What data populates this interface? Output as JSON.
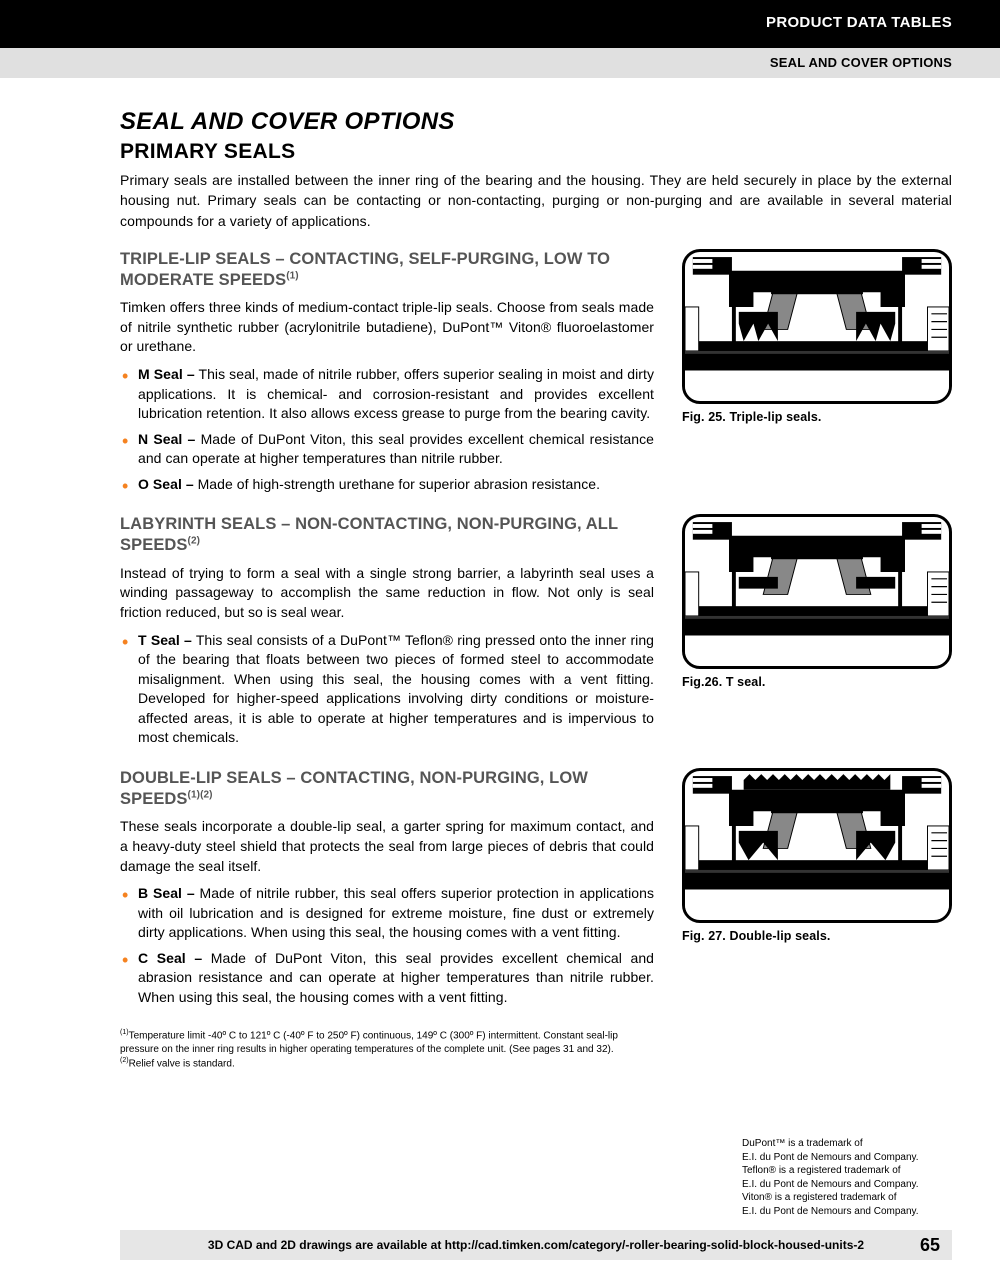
{
  "header": {
    "band1": "PRODUCT DATA TABLES",
    "band2": "SEAL AND COVER OPTIONS"
  },
  "title": "SEAL AND COVER OPTIONS",
  "subtitle": "PRIMARY SEALS",
  "intro": "Primary seals are installed between the inner ring of the bearing and the housing. They are held securely in place by the external housing nut. Primary seals can be contacting or non-contacting, purging or non-purging and are available in several material compounds for a variety of applications.",
  "sections": [
    {
      "heading": "TRIPLE-LIP SEALS – CONTACTING, SELF-PURGING, LOW TO MODERATE SPEEDS",
      "sup": "(1)",
      "para": "Timken offers three kinds of medium-contact triple-lip seals. Choose from seals made of nitrile synthetic rubber (acrylonitrile butadiene), DuPont™ Viton® fluoroelastomer or urethane.",
      "items": [
        {
          "label": "M Seal –",
          "text": " This seal, made of nitrile rubber, offers superior sealing in moist and dirty applications. It is chemical- and corrosion-resistant and provides excellent lubrication retention. It also allows excess grease to purge from the bearing cavity."
        },
        {
          "label": "N Seal –",
          "text": " Made of DuPont Viton, this seal provides excellent chemical resistance and can operate at higher temperatures than nitrile rubber."
        },
        {
          "label": "O Seal –",
          "text": " Made of high-strength urethane for superior abrasion resistance."
        }
      ],
      "fig_caption": "Fig. 25. Triple-lip seals."
    },
    {
      "heading": "LABYRINTH SEALS – NON-CONTACTING, NON-PURGING, ALL SPEEDS",
      "sup": "(2)",
      "para": "Instead of trying to form a seal with a single strong barrier, a labyrinth seal uses a winding passageway to accomplish the same reduction in flow. Not only is seal friction reduced, but so is seal wear.",
      "items": [
        {
          "label": "T Seal –",
          "text": " This seal consists of a DuPont™ Teflon® ring pressed onto the inner ring of the bearing that floats between two pieces of formed steel to accommodate misalignment. When using this seal, the housing comes with a vent fitting. Developed for higher-speed applications involving dirty conditions or moisture-affected areas, it is able to operate at higher temperatures and is impervious to most chemicals."
        }
      ],
      "fig_caption": "Fig.26. T seal."
    },
    {
      "heading": "DOUBLE-LIP SEALS – CONTACTING, NON-PURGING, LOW SPEEDS",
      "sup": "(1)(2)",
      "para": "These seals incorporate a double-lip seal, a garter spring for maximum contact, and a heavy-duty steel shield that protects the seal from large pieces of debris that could damage the seal itself.",
      "items": [
        {
          "label": "B Seal –",
          "text": " Made of nitrile rubber, this seal offers superior protection in applications with oil lubrication and is designed for extreme moisture, fine dust or extremely dirty applications. When using this seal, the housing comes with a vent fitting."
        },
        {
          "label": "C Seal –",
          "text": " Made of DuPont Viton, this seal provides excellent chemical and abrasion resistance and can operate at higher temperatures than nitrile rubber. When using this seal, the housing comes with a vent fitting."
        }
      ],
      "fig_caption": "Fig. 27. Double-lip seals."
    }
  ],
  "footnotes": [
    "Temperature limit -40º C to 121º C (-40º F to 250º F) continuous, 149º C (300º F) intermittent. Constant seal-lip pressure on the inner ring results in higher operating temperatures of the complete unit. (See pages 31 and 32).",
    "Relief valve is standard."
  ],
  "footnote_sups": [
    "(1)",
    "(2)"
  ],
  "trademarks": "DuPont™ is a trademark of\nE.I. du Pont de Nemours and Company.\nTeflon® is a registered trademark of\nE.I. du Pont de Nemours and Company.\nViton® is a registered trademark of\nE.I. du Pont de Nemours and Company.",
  "footer": "3D CAD and 2D drawings are available at http://cad.timken.com/category/-roller-bearing-solid-block-housed-units-2",
  "pagenum": "65",
  "colors": {
    "bullet": "#f58220",
    "section_heading": "#555555",
    "grey_band": "#e0e0e0",
    "footer_bg": "#e6e6e6"
  }
}
